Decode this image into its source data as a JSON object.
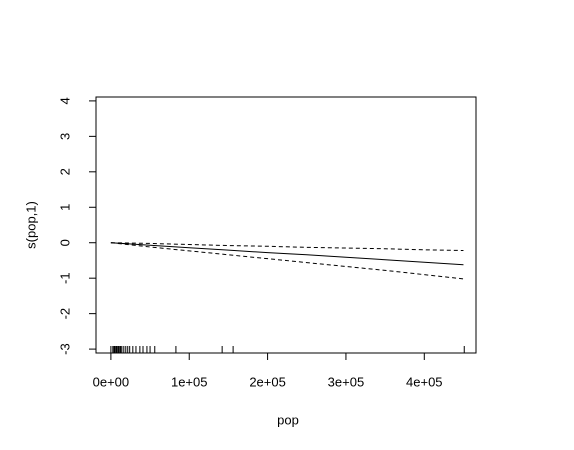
{
  "chart_data": {
    "type": "line",
    "xlabel": "pop",
    "ylabel": "s(pop,1)",
    "x": [
      0,
      50000,
      100000,
      150000,
      200000,
      250000,
      300000,
      350000,
      400000,
      450000
    ],
    "series": [
      {
        "color": "#000000",
        "linestyle": "solid",
        "values": [
          0,
          -0.07,
          -0.14,
          -0.21,
          -0.28,
          -0.34,
          -0.41,
          -0.48,
          -0.55,
          -0.62
        ]
      },
      {
        "color": "#000000",
        "linestyle": "dashed",
        "values": [
          0,
          -0.02,
          -0.05,
          -0.08,
          -0.1,
          -0.13,
          -0.15,
          -0.17,
          -0.2,
          -0.22
        ]
      },
      {
        "color": "#000000",
        "linestyle": "dashed",
        "values": [
          0,
          -0.12,
          -0.23,
          -0.34,
          -0.45,
          -0.56,
          -0.67,
          -0.78,
          -0.9,
          -1.02
        ]
      }
    ],
    "rug": [
      0,
      2500,
      4000,
      5000,
      6500,
      7500,
      9000,
      10000,
      11500,
      12500,
      14000,
      16500,
      19000,
      21500,
      24000,
      28000,
      32000,
      37000,
      41000,
      46000,
      50000,
      56000,
      83000,
      142000,
      156000,
      451000
    ],
    "xlim": [
      -19000,
      466000
    ],
    "ylim": [
      -3.11,
      4.11
    ],
    "xticks": [
      {
        "value": 0,
        "label": "0e+00"
      },
      {
        "value": 100000,
        "label": "1e+05"
      },
      {
        "value": 200000,
        "label": "2e+05"
      },
      {
        "value": 300000,
        "label": "3e+05"
      },
      {
        "value": 400000,
        "label": "4e+05"
      }
    ],
    "yticks": [
      -3,
      -2,
      -1,
      0,
      1,
      2,
      3,
      4
    ]
  }
}
